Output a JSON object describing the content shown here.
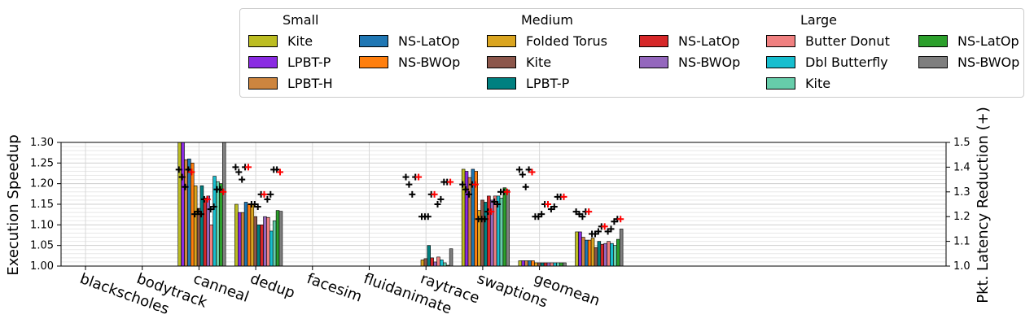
{
  "chart_data": {
    "type": "bar",
    "categories": [
      "blackscholes",
      "bodytrack",
      "canneal",
      "dedup",
      "facesim",
      "fluidanimate",
      "raytrace",
      "swaptions",
      "geomean"
    ],
    "ylabel": "Execution Speedup",
    "ylim": [
      1.0,
      1.3
    ],
    "y_ticks": [
      "1.00",
      "1.05",
      "1.10",
      "1.15",
      "1.20",
      "1.25",
      "1.30"
    ],
    "y2label": "Pkt. Latency Reduction (+)",
    "y2lim": [
      1.0,
      1.5
    ],
    "y2_ticks": [
      "1.0",
      "1.1",
      "1.2",
      "1.3",
      "1.4",
      "1.5"
    ],
    "grid": true,
    "legend_position": "top",
    "legend_groups": [
      {
        "title": "Small",
        "columns": [
          [
            "Kite",
            "LPBT-P",
            "LPBT-H"
          ],
          [
            "NS-LatOp",
            "NS-BWOp"
          ]
        ]
      },
      {
        "title": "Medium",
        "columns": [
          [
            "Folded Torus",
            "Kite",
            "LPBT-P"
          ],
          [
            "NS-LatOp",
            "NS-BWOp"
          ]
        ]
      },
      {
        "title": "Large",
        "columns": [
          [
            "Butter Donut",
            "Dbl Butterfly",
            "Kite"
          ],
          [
            "NS-LatOp",
            "NS-BWOp"
          ]
        ]
      }
    ],
    "series": [
      {
        "name": "Kite",
        "group": "Small",
        "color": "#bcbd22",
        "values": [
          null,
          1.3,
          1.15,
          null,
          null,
          null,
          1.235,
          1.013,
          1.083
        ],
        "latency": [
          null,
          1.39,
          1.4,
          null,
          null,
          1.36,
          1.33,
          1.39,
          1.22
        ]
      },
      {
        "name": "LPBT-P",
        "group": "Small",
        "color": "#8a2be2",
        "values": [
          null,
          1.3,
          1.13,
          null,
          null,
          null,
          1.23,
          1.013,
          1.083
        ],
        "latency": [
          null,
          1.36,
          1.38,
          null,
          null,
          1.33,
          1.31,
          1.37,
          1.21
        ]
      },
      {
        "name": "LPBT-H",
        "group": "Small",
        "color": "#cd853f",
        "values": [
          null,
          1.258,
          1.13,
          null,
          null,
          null,
          1.215,
          1.013,
          1.07
        ],
        "latency": [
          null,
          1.32,
          1.35,
          null,
          null,
          1.29,
          1.29,
          1.32,
          1.2
        ]
      },
      {
        "name": "NS-LatOp",
        "group": "Small",
        "color": "#1f77b4",
        "values": [
          null,
          1.26,
          1.155,
          null,
          null,
          null,
          1.235,
          1.013,
          1.063
        ],
        "latency": [
          null,
          1.39,
          1.4,
          null,
          null,
          1.36,
          1.33,
          1.39,
          1.22
        ]
      },
      {
        "name": "NS-BWOp",
        "group": "Small",
        "color": "#ff7f0e",
        "values": [
          null,
          1.25,
          1.15,
          null,
          null,
          null,
          1.23,
          1.013,
          1.063
        ],
        "latency": [
          null,
          1.38,
          1.4,
          null,
          null,
          1.36,
          1.33,
          1.38,
          1.22
        ]
      },
      {
        "name": "Folded Torus",
        "group": "Medium",
        "color": "#daa520",
        "values": [
          null,
          1.195,
          1.15,
          null,
          null,
          1.015,
          1.135,
          1.008,
          1.068
        ],
        "latency": [
          null,
          1.21,
          1.25,
          null,
          null,
          1.2,
          1.19,
          1.2,
          1.13
        ]
      },
      {
        "name": "Kite",
        "group": "Medium",
        "color": "#8c564b",
        "values": [
          null,
          1.14,
          1.12,
          null,
          null,
          1.018,
          1.16,
          1.008,
          1.045
        ],
        "latency": [
          null,
          1.22,
          1.25,
          null,
          null,
          1.2,
          1.19,
          1.2,
          1.13
        ]
      },
      {
        "name": "LPBT-P",
        "group": "Medium",
        "color": "#008080",
        "values": [
          null,
          1.195,
          1.1,
          null,
          null,
          1.05,
          1.155,
          1.008,
          1.06
        ],
        "latency": [
          null,
          1.21,
          1.24,
          null,
          null,
          1.2,
          1.19,
          1.21,
          1.14
        ]
      },
      {
        "name": "NS-LatOp",
        "group": "Medium",
        "color": "#d62728",
        "values": [
          null,
          1.165,
          1.1,
          null,
          null,
          1.02,
          1.17,
          1.008,
          1.053
        ],
        "latency": [
          null,
          1.27,
          1.29,
          null,
          null,
          1.29,
          1.22,
          1.25,
          1.16
        ]
      },
      {
        "name": "NS-BWOp",
        "group": "Medium",
        "color": "#9467bd",
        "values": [
          null,
          1.17,
          1.12,
          null,
          null,
          1.01,
          1.16,
          1.008,
          1.055
        ],
        "latency": [
          null,
          1.27,
          1.29,
          null,
          null,
          1.29,
          1.22,
          1.25,
          1.16
        ]
      },
      {
        "name": "Butter Donut",
        "group": "Large",
        "color": "#f08080",
        "values": [
          null,
          1.1,
          1.118,
          null,
          null,
          1.022,
          1.17,
          1.008,
          1.06
        ],
        "latency": [
          null,
          1.23,
          1.27,
          null,
          null,
          1.25,
          1.26,
          1.23,
          1.14
        ]
      },
      {
        "name": "Dbl Butterfly",
        "group": "Large",
        "color": "#17becf",
        "values": [
          null,
          1.218,
          1.085,
          null,
          null,
          1.015,
          1.17,
          1.008,
          1.055
        ],
        "latency": [
          null,
          1.24,
          1.29,
          null,
          null,
          1.27,
          1.25,
          1.24,
          1.15
        ]
      },
      {
        "name": "Kite",
        "group": "Large",
        "color": "#66cdaa",
        "values": [
          null,
          1.205,
          1.11,
          null,
          null,
          1.008,
          1.165,
          1.008,
          1.05
        ],
        "latency": [
          null,
          1.31,
          1.39,
          null,
          null,
          1.34,
          1.3,
          1.28,
          1.18
        ]
      },
      {
        "name": "NS-LatOp",
        "group": "Large",
        "color": "#2ca02c",
        "values": [
          null,
          1.2,
          1.135,
          null,
          null,
          1.002,
          1.19,
          1.008,
          1.065
        ],
        "latency": [
          null,
          1.31,
          1.39,
          null,
          null,
          1.34,
          1.3,
          1.28,
          1.19
        ]
      },
      {
        "name": "NS-BWOp",
        "group": "Large",
        "color": "#7f7f7f",
        "values": [
          null,
          1.3,
          1.133,
          null,
          null,
          1.042,
          1.185,
          1.008,
          1.09
        ],
        "latency": [
          null,
          1.3,
          1.38,
          null,
          null,
          1.34,
          1.3,
          1.28,
          1.19
        ]
      }
    ],
    "latency_marker_colors": [
      "#000000",
      "#ff0000"
    ]
  }
}
